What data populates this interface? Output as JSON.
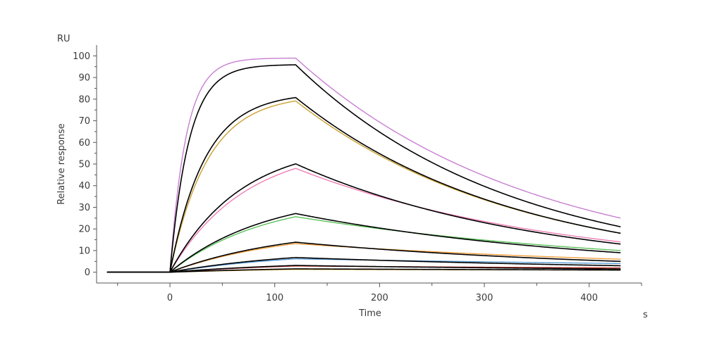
{
  "chart_data": {
    "type": "line",
    "title": "",
    "xlabel": "Time",
    "xunit": "s",
    "ylabel": "Relative response",
    "yunit": "RU",
    "xlim": [
      -70,
      450
    ],
    "ylim": [
      -5,
      105
    ],
    "xticks": [
      0,
      100,
      200,
      300,
      400
    ],
    "yticks": [
      0,
      10,
      20,
      30,
      40,
      50,
      60,
      70,
      80,
      90,
      100
    ],
    "grid": false,
    "legend": "none",
    "association_start": 0,
    "dissociation_start": 120,
    "x_start": -60,
    "x_end": 430,
    "series": [
      {
        "color": "#c77fd1",
        "ka": 0.065,
        "rmax": 99,
        "kd": 0.0047,
        "end": 25
      },
      {
        "color": "#000000",
        "ka": 0.055,
        "rmax": 96,
        "kd": 0.005,
        "end": 21
      },
      {
        "color": "#c9a030",
        "ka": 0.028,
        "rmax": 82,
        "kd": 0.006,
        "end": 18
      },
      {
        "color": "#000000",
        "ka": 0.03,
        "rmax": 83,
        "kd": 0.0052,
        "end": 18
      },
      {
        "color": "#ee7fb5",
        "ka": 0.014,
        "rmax": 59,
        "kd": 0.0046,
        "end": 14
      },
      {
        "color": "#000000",
        "ka": 0.015,
        "rmax": 60,
        "kd": 0.0041,
        "end": 13
      },
      {
        "color": "#5cc15c",
        "ka": 0.011,
        "rmax": 35,
        "kd": 0.0042,
        "end": 10
      },
      {
        "color": "#000000",
        "ka": 0.011,
        "rmax": 37,
        "kd": 0.0037,
        "end": 9
      },
      {
        "color": "#f0a040",
        "ka": 0.009,
        "rmax": 20,
        "kd": 0.0035,
        "end": 6
      },
      {
        "color": "#000000",
        "ka": 0.009,
        "rmax": 21,
        "kd": 0.0033,
        "end": 5
      },
      {
        "color": "#5a9bd5",
        "ka": 0.008,
        "rmax": 10,
        "kd": 0.003,
        "end": 4
      },
      {
        "color": "#000000",
        "ka": 0.008,
        "rmax": 11,
        "kd": 0.003,
        "end": 3
      },
      {
        "color": "#d0423c",
        "ka": 0.007,
        "rmax": 5,
        "kd": 0.003,
        "end": 2
      },
      {
        "color": "#000000",
        "ka": 0.007,
        "rmax": 5.5,
        "kd": 0.0028,
        "end": 1.5
      },
      {
        "color": "#e0b030",
        "ka": 0.006,
        "rmax": 2.5,
        "kd": 0.003,
        "end": 1
      },
      {
        "color": "#000000",
        "ka": 0.006,
        "rmax": 3,
        "kd": 0.003,
        "end": 1
      }
    ]
  }
}
